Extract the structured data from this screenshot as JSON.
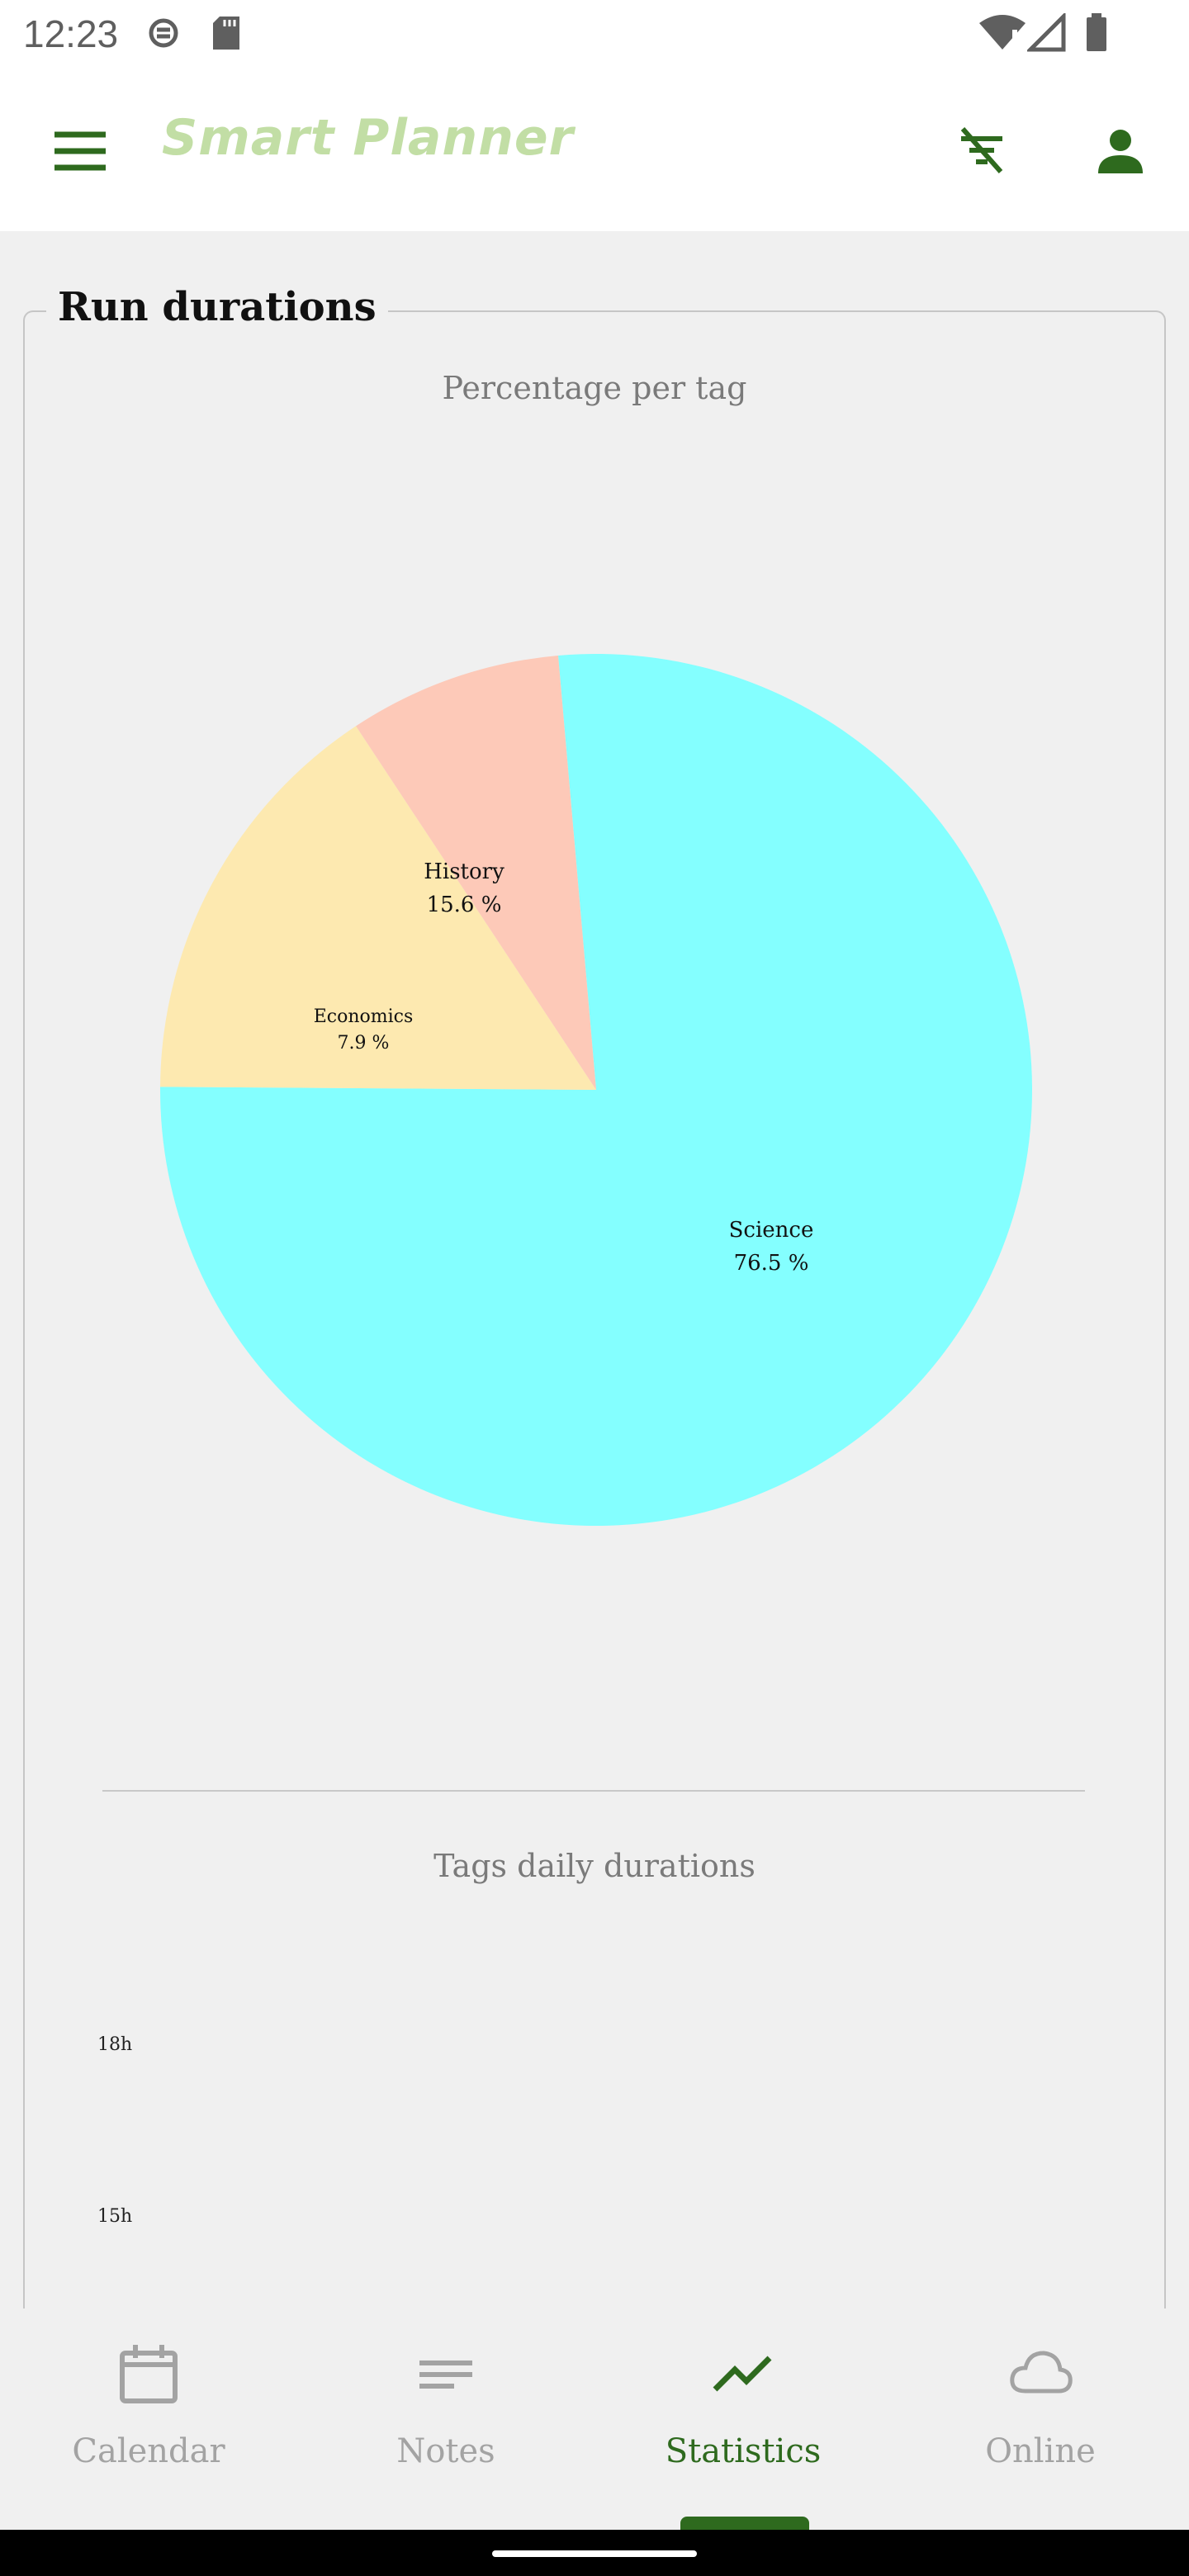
{
  "status_bar": {
    "time": "12:23",
    "icons": [
      "screen-record-icon",
      "sd-card-icon",
      "wifi-alert-icon",
      "signal-icon",
      "battery-icon"
    ]
  },
  "app_bar": {
    "title": "Smart Planner",
    "title_color": "#c2dea5",
    "accent_color": "#2e6a1e",
    "icons": [
      "menu-icon",
      "filter-off-icon",
      "account-icon"
    ]
  },
  "card": {
    "title": "Run durations"
  },
  "pie_chart": {
    "title": "Percentage per tag",
    "labels": [
      {
        "name": "Science",
        "value": "76.5 %"
      },
      {
        "name": "History",
        "value": "15.6 %"
      },
      {
        "name": "Economics",
        "value": "7.9 %"
      }
    ]
  },
  "bar_chart": {
    "title": "Tags daily durations",
    "y_ticks": [
      "18h",
      "15h"
    ]
  },
  "chart_data": [
    {
      "type": "pie",
      "title": "Percentage per tag",
      "categories": [
        "Science",
        "History",
        "Economics"
      ],
      "values": [
        76.5,
        15.6,
        7.9
      ],
      "colors": [
        "#84ffff",
        "#fde9b0",
        "#fdc9b8"
      ]
    },
    {
      "type": "bar",
      "title": "Tags daily durations",
      "y_tick_labels": [
        "18h",
        "15h"
      ]
    }
  ],
  "bottom_nav": {
    "items": [
      {
        "label": "Calendar",
        "icon": "calendar-icon",
        "active": false
      },
      {
        "label": "Notes",
        "icon": "notes-icon",
        "active": false
      },
      {
        "label": "Statistics",
        "icon": "trending-up-icon",
        "active": true
      },
      {
        "label": "Online",
        "icon": "cloud-icon",
        "active": false
      }
    ],
    "active_color": "#2e6a1e",
    "inactive_color": "#a3a3a3"
  }
}
